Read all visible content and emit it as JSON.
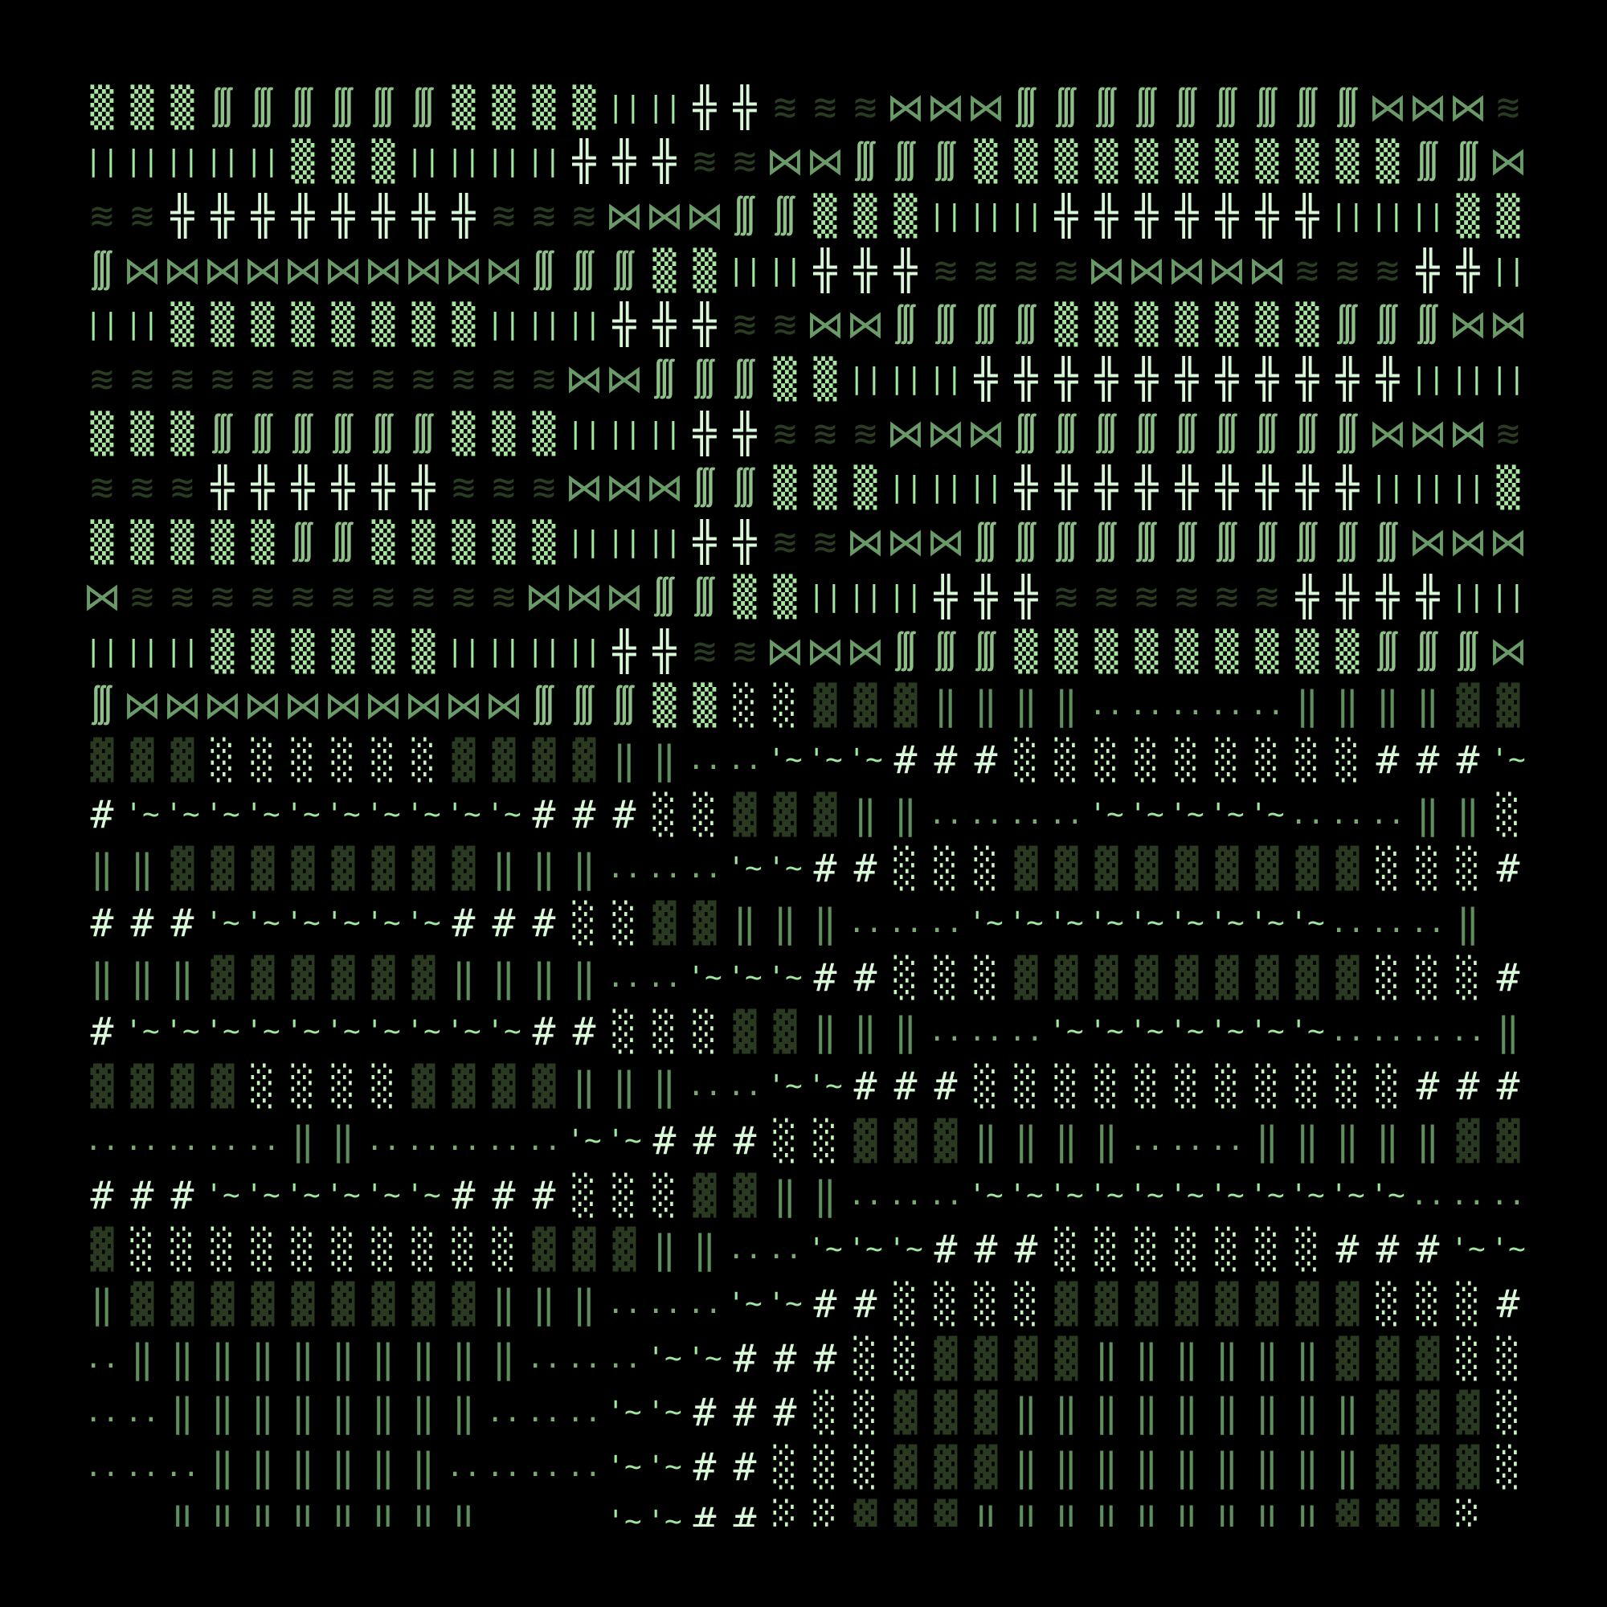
{
  "palette": {
    "▒": "#a8e6a0",
    "∭": "#8fbf88",
    "||": "#a0e8a0",
    "╬": "#d8f8d8",
    "≋": "#2a3d22",
    "⋈": "#6a9a68",
    "▓": "#2a3a20",
    "░": "#c8f4c0",
    "‖": "#5e905e",
    "..": "#7aaa72",
    "'~": "#a0e8a0",
    "#": "#d8f8d8",
    " ": "#000000"
  },
  "rows": [
    [
      [
        "▒",
        3
      ],
      [
        "∭",
        6
      ],
      [
        "▒",
        4
      ],
      [
        "||",
        2
      ],
      [
        "╬",
        2
      ],
      [
        "≋",
        3
      ],
      [
        "⋈",
        3
      ],
      [
        "∭",
        9
      ],
      [
        "⋈",
        3
      ],
      [
        "≋",
        1
      ]
    ],
    [
      [
        "||",
        5
      ],
      [
        "▒",
        3
      ],
      [
        "||",
        4
      ],
      [
        "╬",
        3
      ],
      [
        "≋",
        2
      ],
      [
        "⋈",
        2
      ],
      [
        "∭",
        3
      ],
      [
        "▒",
        11
      ],
      [
        "∭",
        2
      ],
      [
        "⋈",
        1
      ]
    ],
    [
      [
        "≋",
        2
      ],
      [
        "╬",
        8
      ],
      [
        "≋",
        3
      ],
      [
        "⋈",
        3
      ],
      [
        "∭",
        2
      ],
      [
        "▒",
        3
      ],
      [
        "||",
        3
      ],
      [
        "╬",
        7
      ],
      [
        "||",
        3
      ],
      [
        "▒",
        2
      ]
    ],
    [
      [
        "∭",
        1
      ],
      [
        "⋈",
        10
      ],
      [
        "∭",
        3
      ],
      [
        "▒",
        2
      ],
      [
        "||",
        2
      ],
      [
        "╬",
        3
      ],
      [
        "≋",
        4
      ],
      [
        "⋈",
        5
      ],
      [
        "≋",
        3
      ],
      [
        "╬",
        2
      ],
      [
        "||",
        1
      ]
    ],
    [
      [
        "||",
        2
      ],
      [
        "▒",
        8
      ],
      [
        "||",
        3
      ],
      [
        "╬",
        3
      ],
      [
        "≋",
        2
      ],
      [
        "⋈",
        2
      ],
      [
        "∭",
        4
      ],
      [
        "▒",
        7
      ],
      [
        "∭",
        3
      ],
      [
        "⋈",
        2
      ]
    ],
    [
      [
        "≋",
        12
      ],
      [
        "⋈",
        2
      ],
      [
        "∭",
        3
      ],
      [
        "▒",
        2
      ],
      [
        "||",
        3
      ],
      [
        "╬",
        11
      ],
      [
        "||",
        3
      ],
      [
        "▒",
        1
      ]
    ],
    [
      [
        "▒",
        3
      ],
      [
        "∭",
        6
      ],
      [
        "▒",
        3
      ],
      [
        "||",
        3
      ],
      [
        "╬",
        2
      ],
      [
        "≋",
        3
      ],
      [
        "⋈",
        3
      ],
      [
        "∭",
        9
      ],
      [
        "⋈",
        3
      ],
      [
        "≋",
        1
      ]
    ],
    [
      [
        "≋",
        3
      ],
      [
        "╬",
        6
      ],
      [
        "≋",
        3
      ],
      [
        "⋈",
        3
      ],
      [
        "∭",
        2
      ],
      [
        "▒",
        3
      ],
      [
        "||",
        3
      ],
      [
        "╬",
        9
      ],
      [
        "||",
        3
      ],
      [
        "▒",
        1
      ]
    ],
    [
      [
        "▒",
        5
      ],
      [
        "∭",
        2
      ],
      [
        "▒",
        5
      ],
      [
        "||",
        3
      ],
      [
        "╬",
        2
      ],
      [
        "≋",
        2
      ],
      [
        "⋈",
        3
      ],
      [
        "∭",
        11
      ],
      [
        "⋈",
        3
      ]
    ],
    [
      [
        "⋈",
        1
      ],
      [
        "≋",
        10
      ],
      [
        "⋈",
        3
      ],
      [
        "∭",
        2
      ],
      [
        "▒",
        2
      ],
      [
        "||",
        3
      ],
      [
        "╬",
        3
      ],
      [
        "≋",
        6
      ],
      [
        "╬",
        4
      ],
      [
        "||",
        2
      ]
    ],
    [
      [
        "||",
        3
      ],
      [
        "▒",
        6
      ],
      [
        "||",
        4
      ],
      [
        "╬",
        2
      ],
      [
        "≋",
        2
      ],
      [
        "⋈",
        3
      ],
      [
        "∭",
        3
      ],
      [
        "▒",
        9
      ],
      [
        "∭",
        3
      ],
      [
        "⋈",
        1
      ]
    ],
    [
      [
        "∭",
        1
      ],
      [
        "⋈",
        10
      ],
      [
        "∭",
        3
      ],
      [
        "▒",
        2
      ],
      [
        "░",
        2
      ],
      [
        "▓",
        3
      ],
      [
        "‖",
        4
      ],
      [
        "..",
        5
      ],
      [
        "‖",
        4
      ],
      [
        "▓",
        2
      ]
    ],
    [
      [
        "▓",
        3
      ],
      [
        "░",
        6
      ],
      [
        "▓",
        4
      ],
      [
        "‖",
        2
      ],
      [
        "..",
        2
      ],
      [
        "'~",
        3
      ],
      [
        "#",
        3
      ],
      [
        "░",
        9
      ],
      [
        "#",
        3
      ],
      [
        "'~",
        1
      ]
    ],
    [
      [
        "#",
        1
      ],
      [
        "'~",
        10
      ],
      [
        "#",
        3
      ],
      [
        "░",
        2
      ],
      [
        "▓",
        3
      ],
      [
        "‖",
        2
      ],
      [
        "..",
        4
      ],
      [
        "'~",
        5
      ],
      [
        "..",
        3
      ],
      [
        "‖",
        2
      ],
      [
        "░",
        1
      ]
    ],
    [
      [
        "‖",
        2
      ],
      [
        "▓",
        8
      ],
      [
        "‖",
        3
      ],
      [
        "..",
        3
      ],
      [
        "'~",
        2
      ],
      [
        "#",
        2
      ],
      [
        "░",
        3
      ],
      [
        "▓",
        9
      ],
      [
        "░",
        3
      ],
      [
        "#",
        2
      ]
    ],
    [
      [
        "#",
        3
      ],
      [
        "'~",
        6
      ],
      [
        "#",
        3
      ],
      [
        "░",
        2
      ],
      [
        "▓",
        2
      ],
      [
        "‖",
        3
      ],
      [
        "..",
        3
      ],
      [
        "'~",
        9
      ],
      [
        "..",
        3
      ],
      [
        "‖",
        1
      ]
    ],
    [
      [
        "‖",
        3
      ],
      [
        "▓",
        6
      ],
      [
        "‖",
        4
      ],
      [
        "..",
        2
      ],
      [
        "'~",
        3
      ],
      [
        "#",
        2
      ],
      [
        "░",
        3
      ],
      [
        "▓",
        9
      ],
      [
        "░",
        3
      ],
      [
        "#",
        2
      ]
    ],
    [
      [
        "#",
        1
      ],
      [
        "'~",
        10
      ],
      [
        "#",
        2
      ],
      [
        "░",
        3
      ],
      [
        "▓",
        2
      ],
      [
        "‖",
        3
      ],
      [
        "..",
        3
      ],
      [
        "'~",
        7
      ],
      [
        "..",
        4
      ],
      [
        "‖",
        1
      ]
    ],
    [
      [
        "▓",
        4
      ],
      [
        "░",
        4
      ],
      [
        "▓",
        4
      ],
      [
        "‖",
        3
      ],
      [
        "..",
        2
      ],
      [
        "'~",
        2
      ],
      [
        "#",
        3
      ],
      [
        "░",
        11
      ],
      [
        "#",
        3
      ]
    ],
    [
      [
        "..",
        5
      ],
      [
        "‖",
        2
      ],
      [
        "..",
        5
      ],
      [
        "'~",
        2
      ],
      [
        "#",
        3
      ],
      [
        "░",
        2
      ],
      [
        "▓",
        3
      ],
      [
        "‖",
        4
      ],
      [
        "..",
        3
      ],
      [
        "‖",
        5
      ],
      [
        "▓",
        2
      ],
      [
        "░",
        1
      ]
    ],
    [
      [
        "#",
        3
      ],
      [
        "'~",
        6
      ],
      [
        "#",
        3
      ],
      [
        "░",
        3
      ],
      [
        "▓",
        2
      ],
      [
        "‖",
        2
      ],
      [
        "..",
        3
      ],
      [
        "'~",
        11
      ],
      [
        "..",
        3
      ]
    ],
    [
      [
        "▓",
        1
      ],
      [
        "░",
        10
      ],
      [
        "▓",
        3
      ],
      [
        "‖",
        2
      ],
      [
        "..",
        2
      ],
      [
        "'~",
        3
      ],
      [
        "#",
        3
      ],
      [
        "░",
        7
      ],
      [
        "#",
        3
      ],
      [
        "'~",
        2
      ]
    ],
    [
      [
        "‖",
        1
      ],
      [
        "▓",
        9
      ],
      [
        "‖",
        3
      ],
      [
        "..",
        3
      ],
      [
        "'~",
        2
      ],
      [
        "#",
        2
      ],
      [
        "░",
        4
      ],
      [
        "▓",
        8
      ],
      [
        "░",
        3
      ],
      [
        "#",
        1
      ]
    ],
    [
      [
        "..",
        1
      ],
      [
        "‖",
        10
      ],
      [
        "..",
        3
      ],
      [
        "'~",
        2
      ],
      [
        "#",
        3
      ],
      [
        "░",
        2
      ],
      [
        "▓",
        4
      ],
      [
        "‖",
        6
      ],
      [
        "▓",
        3
      ],
      [
        "░",
        2
      ]
    ],
    [
      [
        "..",
        2
      ],
      [
        "‖",
        8
      ],
      [
        "..",
        3
      ],
      [
        "'~",
        2
      ],
      [
        "#",
        3
      ],
      [
        "░",
        2
      ],
      [
        "▓",
        3
      ],
      [
        "‖",
        9
      ],
      [
        "▓",
        3
      ],
      [
        "░",
        1
      ]
    ],
    [
      [
        "..",
        3
      ],
      [
        "‖",
        6
      ],
      [
        "..",
        4
      ],
      [
        "'~",
        2
      ],
      [
        "#",
        2
      ],
      [
        "░",
        3
      ],
      [
        "▓",
        3
      ],
      [
        "‖",
        9
      ],
      [
        "▓",
        3
      ],
      [
        "░",
        1
      ]
    ],
    [
      [
        " ",
        2
      ],
      [
        "‖",
        8
      ],
      [
        " ",
        3
      ],
      [
        "'~",
        2
      ],
      [
        "#",
        2
      ],
      [
        "░",
        2
      ],
      [
        "▓",
        3
      ],
      [
        "‖",
        9
      ],
      [
        "▓",
        3
      ],
      [
        "░",
        1
      ]
    ]
  ]
}
